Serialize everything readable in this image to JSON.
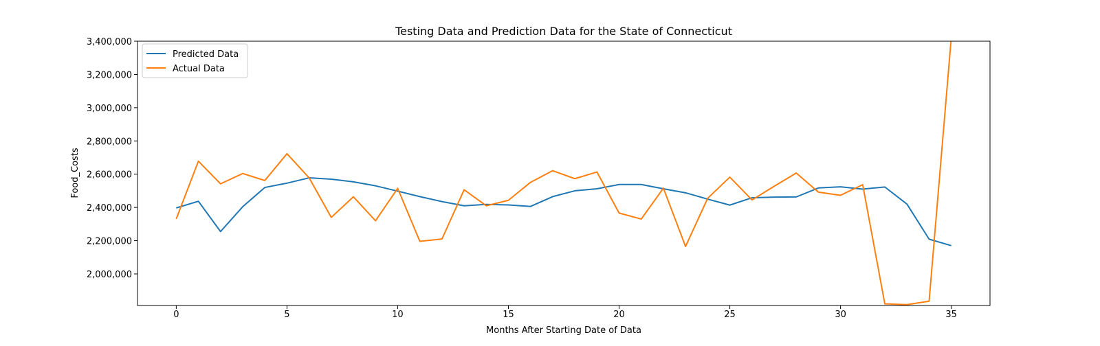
{
  "chart_data": {
    "type": "line",
    "title": "Testing Data and Prediction Data for the State of Connecticut",
    "xlabel": "Months After Starting Date of Data",
    "ylabel": "Food_Costs",
    "xlim": [
      -1.75,
      36.75
    ],
    "ylim": [
      1810000,
      3400000
    ],
    "x_ticks": [
      0,
      5,
      10,
      15,
      20,
      25,
      30,
      35
    ],
    "x_tick_labels": [
      "0",
      "5",
      "10",
      "15",
      "20",
      "25",
      "30",
      "35"
    ],
    "y_ticks": [
      2000000,
      2200000,
      2400000,
      2600000,
      2800000,
      3000000,
      3200000,
      3400000
    ],
    "y_tick_labels": [
      "2,000,000",
      "2,200,000",
      "2,400,000",
      "2,600,000",
      "2,800,000",
      "3,000,000",
      "3,200,000",
      "3,400,000"
    ],
    "grid": false,
    "legend_position": "top-left",
    "x": [
      0,
      1,
      2,
      3,
      4,
      5,
      6,
      7,
      8,
      9,
      10,
      11,
      12,
      13,
      14,
      15,
      16,
      17,
      18,
      19,
      20,
      21,
      22,
      23,
      24,
      25,
      26,
      27,
      28,
      29,
      30,
      31,
      32,
      33,
      34,
      35
    ],
    "series": [
      {
        "name": "Predicted Data",
        "color": "#1f77b4",
        "values": [
          2397000,
          2437000,
          2255000,
          2404000,
          2520000,
          2546000,
          2578000,
          2570000,
          2554000,
          2530000,
          2498000,
          2465000,
          2435000,
          2410000,
          2418000,
          2415000,
          2406000,
          2465000,
          2500000,
          2512000,
          2538000,
          2538000,
          2512000,
          2488000,
          2450000,
          2414000,
          2458000,
          2462000,
          2463000,
          2517000,
          2524000,
          2510000,
          2523000,
          2420000,
          2209000,
          2170000
        ]
      },
      {
        "name": "Actual Data",
        "color": "#ff7f0e",
        "values": [
          2331000,
          2678000,
          2542000,
          2604000,
          2562000,
          2723000,
          2578000,
          2340000,
          2464000,
          2320000,
          2515000,
          2196000,
          2210000,
          2506000,
          2410000,
          2443000,
          2551000,
          2621000,
          2573000,
          2613000,
          2366000,
          2330000,
          2516000,
          2165000,
          2455000,
          2582000,
          2445000,
          2527000,
          2607000,
          2492000,
          2473000,
          2537000,
          1820000,
          1815000,
          1836000,
          3420000
        ]
      }
    ]
  }
}
